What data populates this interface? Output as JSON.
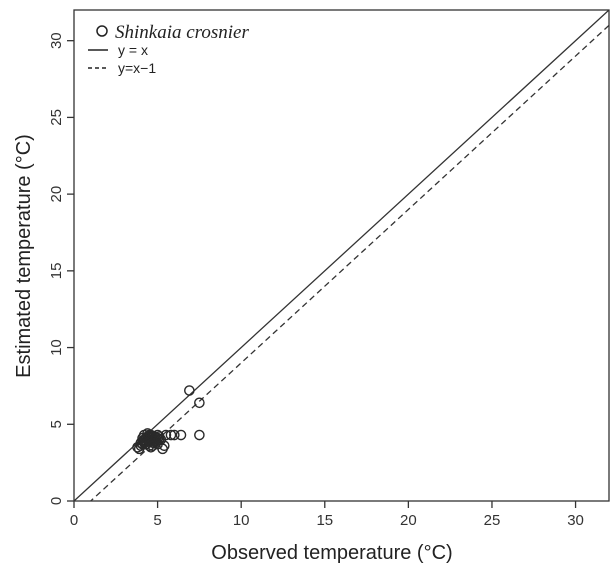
{
  "chart_data": {
    "type": "scatter",
    "xlabel": "Observed temperature (°C)",
    "ylabel": "Estimated temperature (°C)",
    "xlim": [
      0,
      32
    ],
    "ylim": [
      0,
      32
    ],
    "xticks": [
      0,
      5,
      10,
      15,
      20,
      25,
      30
    ],
    "yticks": [
      0,
      5,
      10,
      15,
      20,
      25,
      30
    ],
    "grid": false,
    "legend_position": "top-left",
    "legend": [
      {
        "label": "Shinkaia crosnier",
        "style": "open-circle"
      },
      {
        "label": "y = x",
        "style": "solid-line"
      },
      {
        "label": "y=x−1",
        "style": "dashed-line"
      }
    ],
    "reference_lines": [
      {
        "name": "y = x",
        "slope": 1,
        "intercept": 0,
        "dash": "solid"
      },
      {
        "name": "y=x−1",
        "slope": 1,
        "intercept": -1,
        "dash": "dashed"
      }
    ],
    "series": [
      {
        "name": "Shinkaia crosnier",
        "x": [
          3.9,
          4.0,
          4.1,
          4.2,
          4.2,
          4.3,
          4.3,
          4.4,
          4.4,
          4.5,
          4.5,
          4.6,
          4.6,
          4.7,
          4.7,
          4.8,
          4.8,
          4.9,
          5.0,
          5.0,
          5.1,
          5.2,
          3.8,
          4.0,
          4.1,
          4.3,
          4.5,
          4.6,
          4.8,
          5.0,
          4.2,
          4.4,
          4.6,
          4.9,
          5.3,
          5.4,
          5.5,
          5.8,
          6.0,
          6.4,
          7.5,
          7.5,
          6.9,
          4.1,
          4.7,
          5.1
        ],
        "y": [
          3.4,
          3.6,
          3.7,
          3.8,
          4.0,
          3.9,
          4.1,
          4.2,
          4.0,
          4.3,
          3.9,
          4.1,
          4.2,
          4.0,
          3.8,
          4.2,
          3.9,
          4.0,
          4.3,
          4.1,
          4.2,
          4.0,
          3.5,
          3.8,
          4.1,
          3.7,
          3.6,
          3.5,
          3.8,
          3.7,
          4.3,
          4.4,
          4.3,
          4.1,
          3.4,
          3.6,
          4.3,
          4.3,
          4.3,
          4.3,
          4.3,
          6.4,
          7.2,
          3.9,
          3.6,
          4.0
        ]
      }
    ]
  }
}
